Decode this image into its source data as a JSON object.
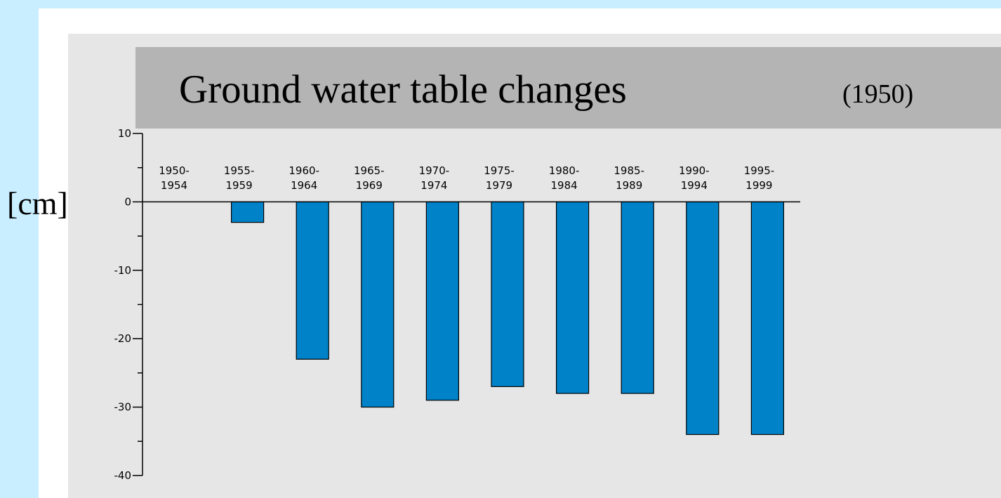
{
  "chart_data": {
    "type": "bar",
    "title": "Ground water table changes",
    "subtitle": "(1950)",
    "y_label": "[cm]",
    "categories": [
      [
        "1950-",
        "1954"
      ],
      [
        "1955-",
        "1959"
      ],
      [
        "1960-",
        "1964"
      ],
      [
        "1965-",
        "1969"
      ],
      [
        "1970-",
        "1974"
      ],
      [
        "1975-",
        "1979"
      ],
      [
        "1980-",
        "1984"
      ],
      [
        "1985-",
        "1989"
      ],
      [
        "1990-",
        "1994"
      ],
      [
        "1995-",
        "1999"
      ]
    ],
    "values": [
      0,
      -3,
      -23,
      -30,
      -29,
      -27,
      -28,
      -28,
      -34,
      -34
    ],
    "color": "#0082c8",
    "ylim": [
      -40,
      10
    ],
    "yticks": [
      10,
      0,
      -10,
      -20,
      -30,
      -40
    ]
  }
}
